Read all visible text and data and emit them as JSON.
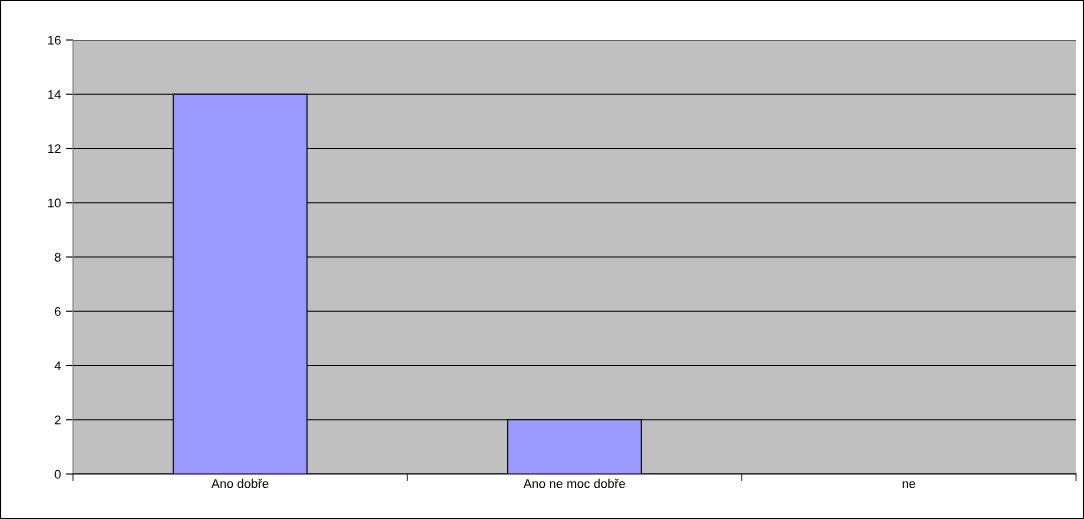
{
  "chart_data": {
    "type": "bar",
    "categories": [
      "Ano dobře",
      "Ano ne moc dobře",
      "ne"
    ],
    "values": [
      14,
      2,
      0
    ],
    "color": "#9999ff",
    "ylim": [
      0,
      16
    ],
    "yticks": [
      0,
      2,
      4,
      6,
      8,
      10,
      12,
      14,
      16
    ],
    "grid": "y",
    "legend": false
  }
}
